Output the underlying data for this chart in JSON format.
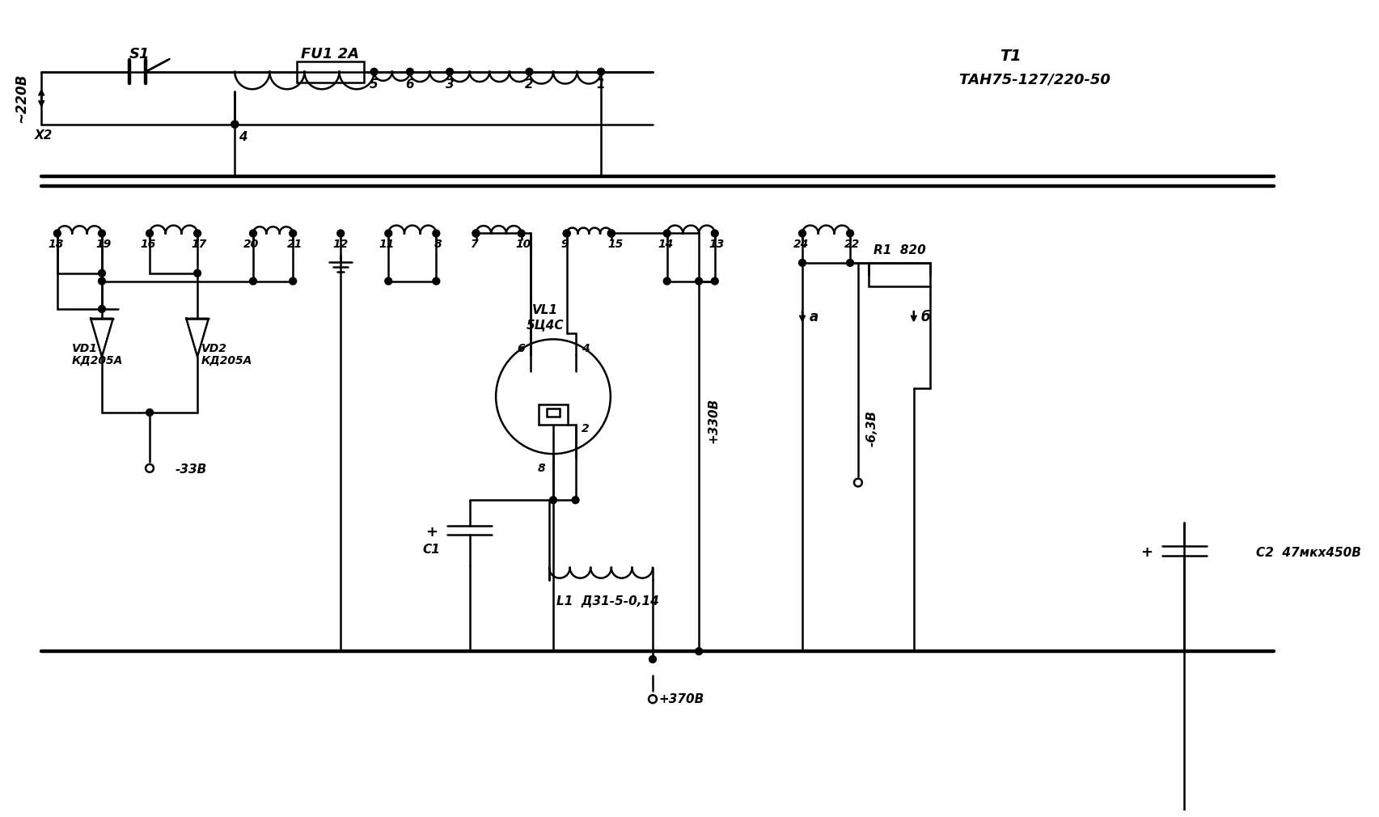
{
  "bg_color": "#ffffff",
  "line_color": "#000000",
  "lw": 1.8,
  "lw_thick": 3.2,
  "figsize": [
    17.06,
    10.1
  ],
  "dpi": 100,
  "labels": {
    "s1": "S1",
    "fu1": "FU1 2A",
    "t1": "T1",
    "t1_model": "ТАН75-127/220-50",
    "x2": "X2",
    "vl1_name": "VL1",
    "vl1_model": "5Ц4С",
    "vd1_name": "VD1",
    "vd1_model": "КД205А",
    "vd2_name": "VD2",
    "vd2_model": "КД205А",
    "r1": "R1  820",
    "c1": "C1",
    "c2": "C2  47мкх450В",
    "l1": "L1  Д31-5-0,14",
    "v330": "+330В",
    "v370": "+370В",
    "v33neg": "-33В",
    "v63neg": "-6,3В",
    "label_a": "а",
    "label_b": "б",
    "v220": "~220В"
  }
}
